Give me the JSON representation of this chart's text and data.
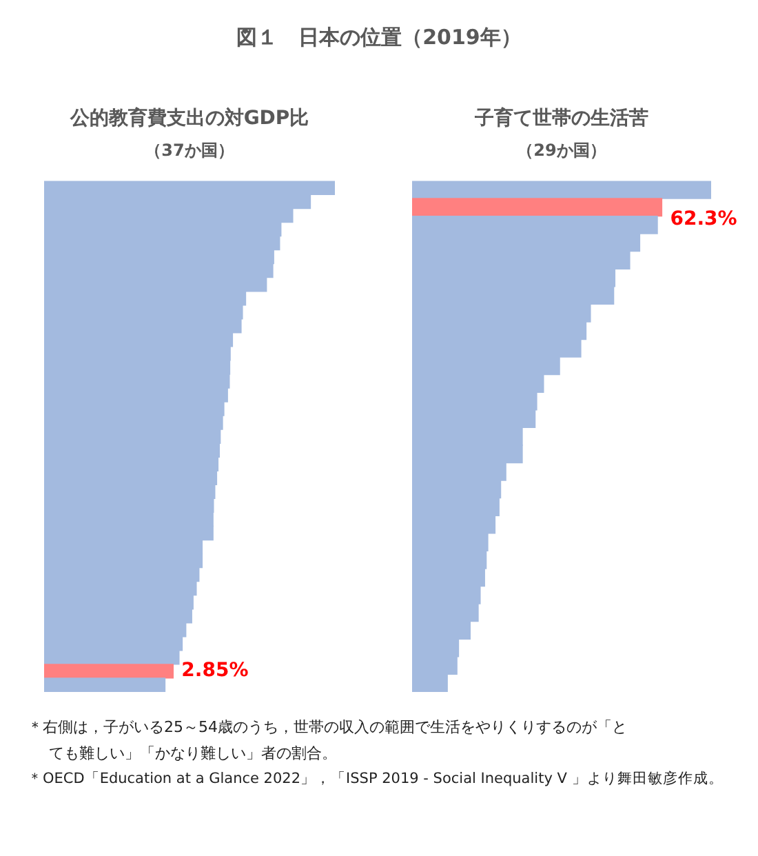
{
  "chart_data": [
    {
      "type": "other",
      "title": "図１　日本の位置（2019年）",
      "annotations": [
        "＊右側は，子がいる25～54歳のうち，世帯の収入の範囲で生活をやりくりするのが「とても難しい」「かなり難しい」者の割合。",
        "＊OECD「Education at a Glance 2022」，「ISSP 2019 - Social Inequality V 」より舞田敏彦作成。"
      ]
    },
    {
      "type": "bar",
      "orientation": "horizontal",
      "title": "公的教育費支出の対GDP比",
      "subtitle": "（37か国）",
      "categories": [
        null,
        null,
        null,
        null,
        null,
        null,
        null,
        null,
        null,
        null,
        null,
        null,
        null,
        null,
        null,
        null,
        null,
        null,
        null,
        null,
        null,
        null,
        null,
        null,
        null,
        null,
        null,
        null,
        null,
        null,
        null,
        null,
        null,
        null,
        null,
        null,
        null
      ],
      "values": [
        6.42,
        5.88,
        5.49,
        5.23,
        5.2,
        5.07,
        5.05,
        4.91,
        4.45,
        4.38,
        4.35,
        4.16,
        4.11,
        4.1,
        4.09,
        4.05,
        3.97,
        3.94,
        3.89,
        3.87,
        3.84,
        3.81,
        3.77,
        3.74,
        3.73,
        3.73,
        3.49,
        3.49,
        3.42,
        3.36,
        3.29,
        3.26,
        3.13,
        3.05,
        2.98,
        2.85,
        2.67
      ],
      "colors": [
        "#a3badf",
        "#a3badf",
        "#a3badf",
        "#a3badf",
        "#a3badf",
        "#a3badf",
        "#a3badf",
        "#a3badf",
        "#a3badf",
        "#a3badf",
        "#a3badf",
        "#a3badf",
        "#a3badf",
        "#a3badf",
        "#a3badf",
        "#a3badf",
        "#a3badf",
        "#a3badf",
        "#a3badf",
        "#a3badf",
        "#a3badf",
        "#a3badf",
        "#a3badf",
        "#a3badf",
        "#a3badf",
        "#a3badf",
        "#a3badf",
        "#a3badf",
        "#a3badf",
        "#a3badf",
        "#a3badf",
        "#a3badf",
        "#a3badf",
        "#a3badf",
        "#a3badf",
        "#ff8080",
        "#a3badf"
      ],
      "value_labels": [
        null,
        null,
        null,
        null,
        null,
        null,
        null,
        null,
        null,
        null,
        null,
        null,
        null,
        null,
        null,
        null,
        null,
        null,
        null,
        null,
        null,
        null,
        null,
        null,
        null,
        null,
        null,
        null,
        null,
        null,
        null,
        null,
        null,
        null,
        null,
        "2.85%",
        null
      ]
    },
    {
      "type": "bar",
      "orientation": "horizontal",
      "title": "子育て世帯の生活苦",
      "subtitle": "（29か国）",
      "categories": [
        null,
        null,
        null,
        null,
        null,
        null,
        null,
        null,
        null,
        null,
        null,
        null,
        null,
        null,
        null,
        null,
        null,
        null,
        null,
        null,
        null,
        null,
        null,
        null,
        null,
        null,
        null,
        null,
        null
      ],
      "values": [
        74.6,
        62.3,
        61.2,
        56.8,
        54.3,
        50.6,
        50.3,
        44.5,
        43.4,
        42.1,
        36.8,
        32.8,
        31.1,
        30.7,
        27.5,
        27.5,
        23.4,
        22.1,
        21.7,
        20.7,
        18.9,
        18.5,
        18.1,
        17,
        16.5,
        14.5,
        11.6,
        11.2,
        8.8
      ],
      "colors": [
        "#a3badf",
        "#ff8080",
        "#a3badf",
        "#a3badf",
        "#a3badf",
        "#a3badf",
        "#a3badf",
        "#a3badf",
        "#a3badf",
        "#a3badf",
        "#a3badf",
        "#a3badf",
        "#a3badf",
        "#a3badf",
        "#a3badf",
        "#a3badf",
        "#a3badf",
        "#a3badf",
        "#a3badf",
        "#a3badf",
        "#a3badf",
        "#a3badf",
        "#a3badf",
        "#a3badf",
        "#a3badf",
        "#a3badf",
        "#a3badf",
        "#a3badf",
        "#a3badf"
      ],
      "value_labels": [
        null,
        "62.3%",
        null,
        null,
        null,
        null,
        null,
        null,
        null,
        null,
        null,
        null,
        null,
        null,
        null,
        null,
        null,
        null,
        null,
        null,
        null,
        null,
        null,
        null,
        null,
        null,
        null,
        null,
        null
      ]
    }
  ]
}
